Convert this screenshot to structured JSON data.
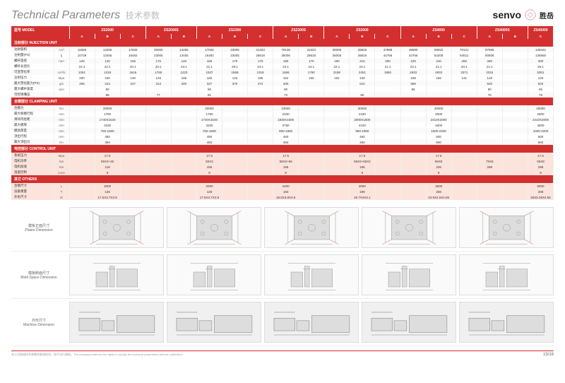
{
  "title": {
    "main": "Technical Parameters",
    "sub": "技术参数"
  },
  "brand": {
    "name": "senvo",
    "cn": "胜岳"
  },
  "header": {
    "model_label": "型号 MODEL",
    "models": [
      "ZS2000",
      "ZS2000S",
      "ZS2300",
      "ZS2300S",
      "ZS3000",
      "ZS4000",
      "ZS4000S",
      "ZS4000II"
    ],
    "variants": [
      "A",
      "B",
      "C"
    ]
  },
  "sections": [
    {
      "title": "注射部分 INJECTION UNIT",
      "rows": [
        {
          "label": "注射容积",
          "unit": "cm³",
          "vals": [
            "11656",
            "14265",
            "17926",
            "25000",
            "14265",
            "17026",
            "23005",
            "31323",
            "79138",
            "31323",
            "36006",
            "28818",
            "47998",
            "48680",
            "58922",
            "70121",
            "87655",
            "",
            "149441"
          ]
        },
        {
          "label": "注射量(PS)",
          "unit": "g",
          "vals": [
            "10739",
            "13455",
            "16492",
            "23005",
            "13455",
            "16492",
            "23005",
            "28818",
            "36006",
            "28818",
            "36006",
            "28818",
            "44766",
            "44766",
            "54208",
            "64511",
            "80508",
            "",
            "136565"
          ]
        },
        {
          "label": "螺杆直径",
          "unit": "mm",
          "vals": [
            "125",
            "140",
            "155",
            "170",
            "140",
            "155",
            "170",
            "170",
            "190",
            "170",
            "190",
            "210",
            "200",
            "220",
            "240",
            "260",
            "280",
            "",
            "300"
          ]
        },
        {
          "label": "螺杆长径比",
          "unit": "",
          "vals": [
            "24:1",
            "22:1",
            "20:1",
            "20:1",
            "23:1",
            "21:1",
            "29:1",
            "24:1",
            "22:1",
            "24:1",
            "22:1",
            "23:1",
            "21:1",
            "23:1",
            "21:1",
            "20:1",
            "21:1",
            "",
            "26:1"
          ]
        },
        {
          "label": "可变塑化率",
          "unit": "cm³/s",
          "vals": [
            "1051",
            "1318",
            "1616",
            "1760",
            "1223",
            "1537",
            "1658",
            "1318",
            "1656",
            "1760",
            "2198",
            "2451",
            "1950",
            "2633",
            "2933",
            "3371",
            "3315",
            "",
            "5301"
          ]
        },
        {
          "label": "注射压力",
          "unit": "Mpa",
          "vals": [
            "200",
            "160",
            "130",
            "133",
            "195",
            "160",
            "133",
            "195",
            "152",
            "190",
            "152",
            "130",
            "",
            "168",
            "156",
            "131",
            "128",
            "",
            "125"
          ]
        },
        {
          "label": "最大塑化能力(PS)",
          "unit": "g/s",
          "vals": [
            "205",
            "224",
            "227",
            "313",
            "320",
            "327",
            "370",
            "372",
            "400",
            "",
            "",
            "510",
            "",
            "595",
            "",
            "",
            "620",
            "",
            "820"
          ]
        },
        {
          "label": "最大螺杆速度",
          "unit": "rpm",
          "vals": [
            "",
            "80",
            "",
            "",
            "",
            "80",
            "",
            "",
            "80",
            "",
            "",
            "",
            "",
            "85",
            "",
            "",
            "80",
            "",
            "65"
          ]
        },
        {
          "label": "可控喷嘴压",
          "unit": "",
          "vals": [
            "",
            "88",
            "",
            "77",
            "",
            "81",
            "",
            "",
            "72",
            "",
            "",
            "80",
            "",
            "",
            "",
            "",
            "75",
            "",
            "75"
          ]
        }
      ]
    },
    {
      "title": "合模部分 CLAMPING UNIT",
      "rows": [
        {
          "label": "合模力",
          "unit": "Kn",
          "vals": [
            "",
            "20000",
            "",
            "",
            "",
            "20000",
            "",
            "",
            "23000",
            "",
            "",
            "30000",
            "",
            "",
            "40000",
            "",
            "",
            "",
            "40000"
          ]
        },
        {
          "label": "最大移模行程",
          "unit": "mm",
          "vals": [
            "",
            "1750",
            "",
            "",
            "",
            "1750",
            "",
            "",
            "2400",
            "",
            "",
            "2150",
            "",
            "",
            "2500",
            "",
            "",
            "",
            "2500"
          ]
        },
        {
          "label": "滑块内柱距",
          "unit": "mm",
          "vals": [
            "",
            "1740X1540",
            "",
            "",
            "",
            "1740X1540",
            "",
            "",
            "1830X1600",
            "",
            "",
            "2000X1800",
            "",
            "",
            "2410X2000",
            "",
            "",
            "",
            "2410X2000"
          ]
        },
        {
          "label": "最大模厚",
          "unit": "mm",
          "vals": [
            "",
            "3330",
            "",
            "",
            "",
            "3330",
            "",
            "",
            "3750",
            "",
            "",
            "4100",
            "",
            "",
            "4600",
            "",
            "",
            "",
            "4600"
          ]
        },
        {
          "label": "模具厚度",
          "unit": "mm",
          "vals": [
            "",
            "750-1600",
            "",
            "",
            "",
            "750-1600",
            "",
            "",
            "800-1850",
            "",
            "",
            "950-1950",
            "",
            "",
            "1000-2200",
            "",
            "",
            "",
            "1000-2200"
          ]
        },
        {
          "label": "顶出行程",
          "unit": "mm",
          "vals": [
            "",
            "460",
            "",
            "",
            "",
            "460",
            "",
            "",
            "460",
            "",
            "",
            "460",
            "",
            "",
            "600",
            "",
            "",
            "",
            "600"
          ]
        },
        {
          "label": "最大顶出力",
          "unit": "Kn",
          "vals": [
            "",
            "484",
            "",
            "",
            "",
            "484",
            "",
            "",
            "484",
            "",
            "",
            "484",
            "",
            "",
            "600",
            "",
            "",
            "",
            "600"
          ]
        }
      ]
    },
    {
      "title": "电控部分 CONTROL UNIT",
      "hl": true,
      "rows": [
        {
          "label": "系统压力",
          "unit": "Mpa",
          "vals": [
            "",
            "17.5",
            "",
            "",
            "",
            "17.5",
            "",
            "",
            "17.5",
            "",
            "",
            "17.5",
            "",
            "",
            "17.5",
            "",
            "",
            "",
            "17.5"
          ]
        },
        {
          "label": "电机功率",
          "unit": "Kw",
          "vals": [
            "",
            "55X2+45",
            "",
            "",
            "",
            "55X3",
            "",
            "",
            "55X2+65",
            "",
            "",
            "65X2+55X2",
            "",
            "",
            "65X5",
            "",
            "75X5",
            "",
            "65X8"
          ]
        },
        {
          "label": "电机加速",
          "unit": "Kw",
          "vals": [
            "",
            "118",
            "",
            "",
            "",
            "155",
            "",
            "",
            "155",
            "",
            "",
            "186",
            "",
            "",
            "226",
            "",
            "268",
            "",
            "288"
          ]
        },
        {
          "label": "温度控制",
          "unit": "zone",
          "vals": [
            "",
            "8",
            "",
            "",
            "",
            "8",
            "",
            "",
            "8",
            "",
            "",
            "8",
            "",
            "",
            "8",
            "",
            "",
            "",
            "9"
          ]
        }
      ]
    },
    {
      "title": "其它 OTHERS",
      "hl": true,
      "rows": [
        {
          "label": "合模尺寸",
          "unit": "L",
          "vals": [
            "",
            "2000",
            "",
            "",
            "",
            "2000",
            "",
            "",
            "2400",
            "",
            "",
            "3000",
            "",
            "",
            "3600",
            "",
            "",
            "",
            "5000"
          ]
        },
        {
          "label": "设备重量",
          "unit": "T",
          "vals": [
            "",
            "126",
            "",
            "",
            "",
            "128",
            "",
            "",
            "150",
            "",
            "",
            "198",
            "",
            "",
            "268",
            "",
            "",
            "",
            "308"
          ]
        },
        {
          "label": "外形尺寸",
          "unit": "M",
          "vals": [
            "",
            "17.5X3.7X3.8",
            "",
            "",
            "",
            "17.5X3.7X3.8",
            "",
            "",
            "18.5X3.8X3.8",
            "",
            "",
            "20.7X4X4.1",
            "",
            "",
            "24.5X4.5X4.55",
            "",
            "",
            "",
            "26X5.26X4.55"
          ]
        }
      ]
    }
  ],
  "diagrams": [
    {
      "label_cn": "模板正面尺寸",
      "label_en": "Platen Dimension",
      "count": 5
    },
    {
      "label_cn": "模板断面尺寸",
      "label_en": "Mold Space Dimension",
      "count": 5
    },
    {
      "label_cn": "外形尺寸",
      "label_en": "Machine Dimension",
      "count": 5,
      "alt": true
    }
  ],
  "footer": {
    "disclaimer": "本公司保留技术参数的更改权利，恕不另行通知。The company reserves the rights to modify the technical parameters without notification.",
    "page": "15/16"
  },
  "colors": {
    "accent": "#d32f2f",
    "peach": "#fce4dc",
    "text": "#333",
    "muted": "#888"
  }
}
